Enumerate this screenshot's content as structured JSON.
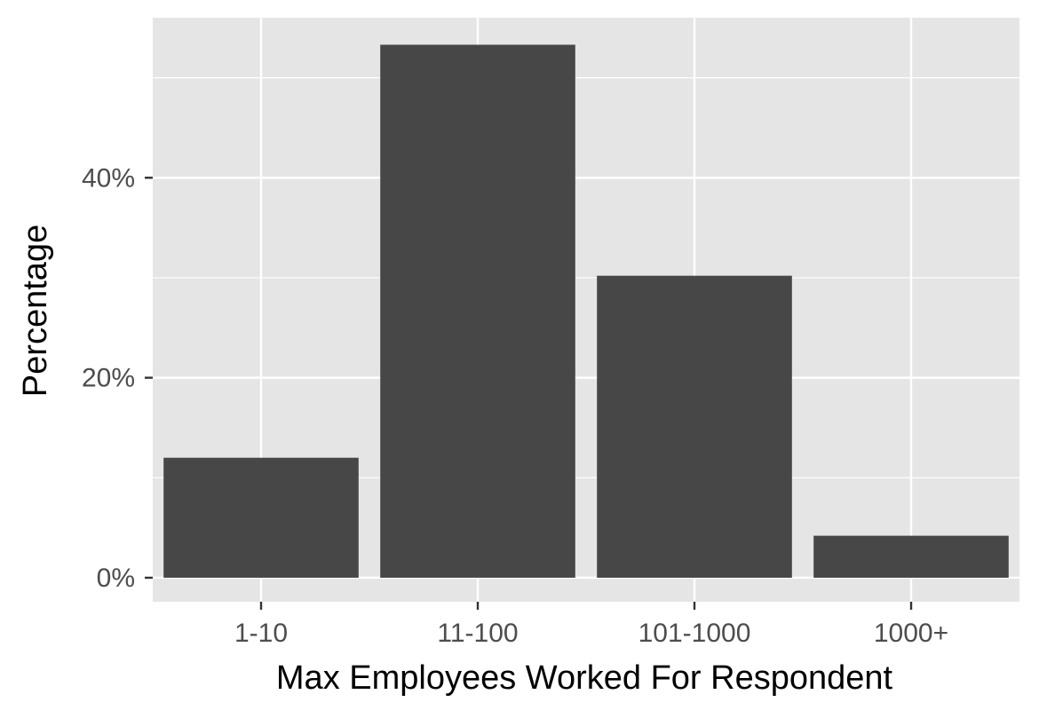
{
  "chart_data": {
    "type": "bar",
    "title": "",
    "xlabel": "Max Employees Worked For Respondent",
    "ylabel": "Percentage",
    "categories": [
      "1-10",
      "11-100",
      "101-1000",
      "1000+"
    ],
    "values": [
      12.0,
      53.3,
      30.2,
      4.2
    ],
    "value_unit": "percent",
    "ylim": [
      -2.4,
      56.0
    ],
    "y_ticks": [
      0,
      20,
      40
    ],
    "y_tick_labels": [
      "0%",
      "20%",
      "40%"
    ],
    "grid": true,
    "legend": "none",
    "colors": {
      "bar": "#474747",
      "panel": "#e5e5e5",
      "grid": "#ffffff",
      "text": "#4d4d4d"
    }
  }
}
